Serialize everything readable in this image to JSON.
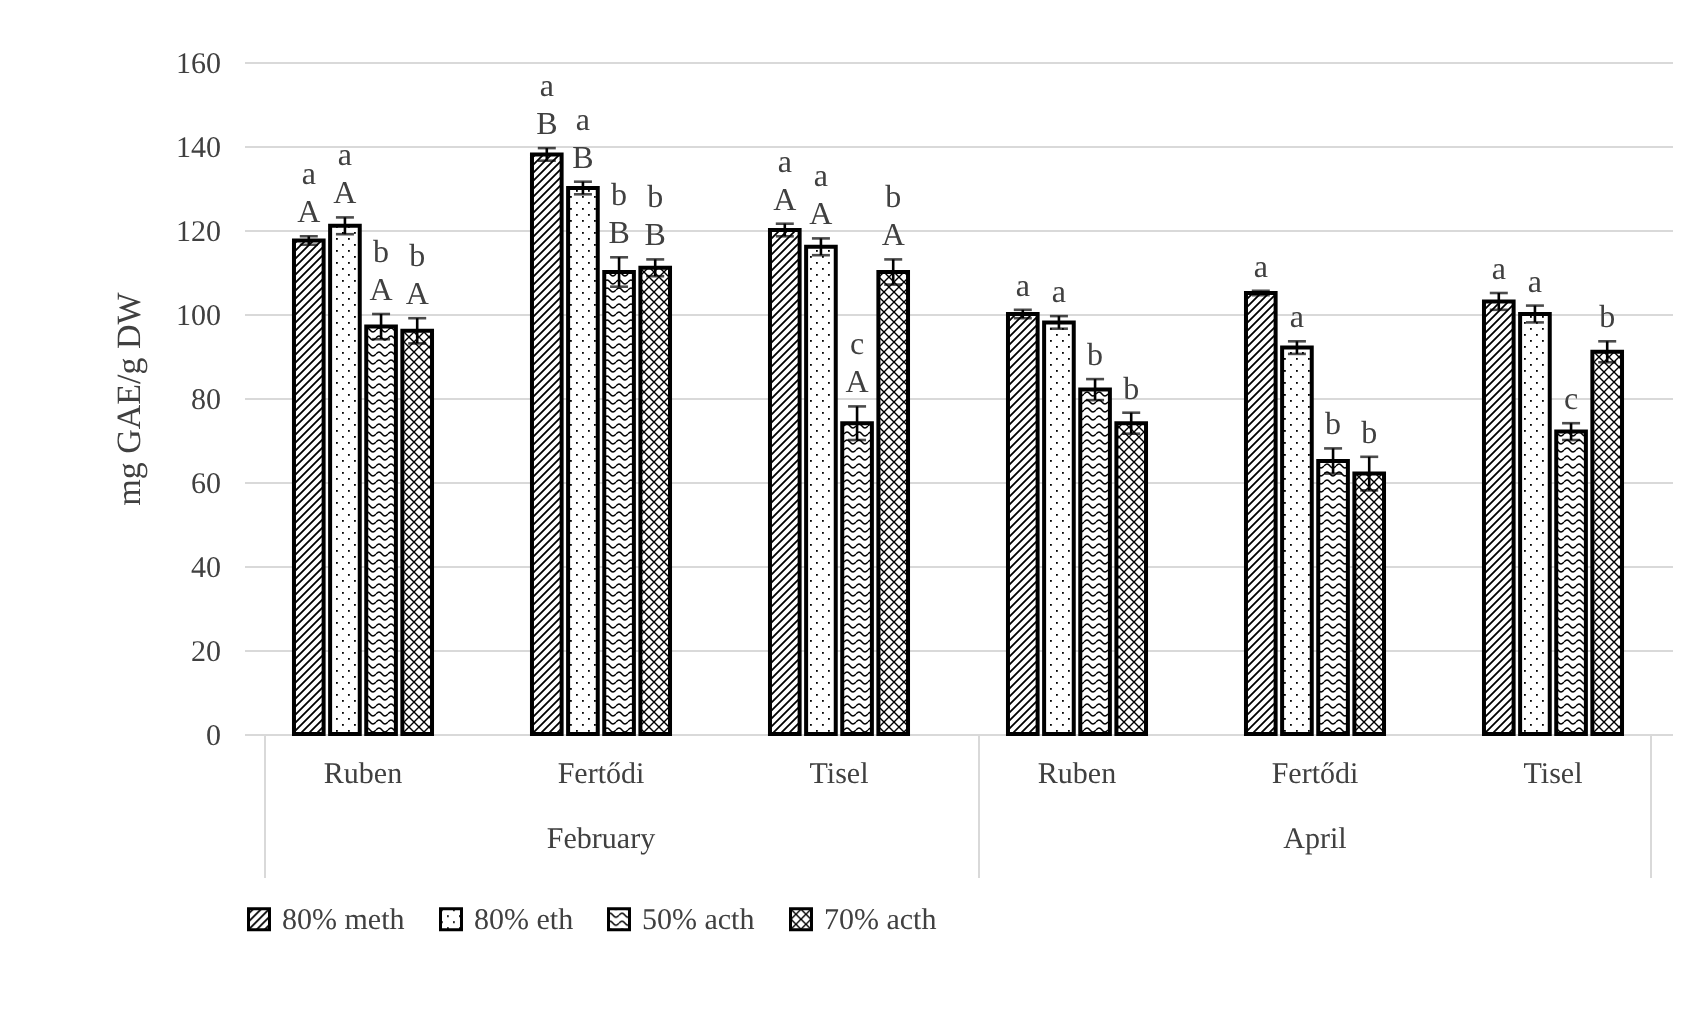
{
  "chart_data": {
    "type": "bar",
    "ylabel": "mg GAE/g DW",
    "categories": [
      "Ruben",
      "Fertődi",
      "Tisel",
      "Ruben",
      "Fertődi",
      "Tisel"
    ],
    "annotations": [
      "February",
      "April"
    ],
    "series": [
      {
        "name": "80% meth",
        "color": "#000000",
        "values": [
          117.5,
          138,
          120,
          100,
          105,
          103
        ],
        "errors": [
          1,
          1.5,
          1.5,
          1,
          0.5,
          2
        ],
        "value_labels": [
          "a\nA",
          "a\nB",
          "a\nA",
          "a",
          "a",
          "a"
        ]
      },
      {
        "name": "80% eth",
        "color": "#000000",
        "values": [
          121,
          130,
          116,
          98,
          92,
          100
        ],
        "errors": [
          2,
          1.5,
          2,
          1.5,
          1.5,
          2
        ],
        "value_labels": [
          "a\nA",
          "a\nB",
          "a\nA",
          "a",
          "a",
          "a"
        ]
      },
      {
        "name": "50% acth",
        "color": "#000000",
        "values": [
          97,
          110,
          74,
          82,
          65,
          72
        ],
        "errors": [
          3,
          3.5,
          4,
          2.5,
          3,
          2
        ],
        "value_labels": [
          "b\nA",
          "b\nB",
          "c\nA",
          "b",
          "b",
          "c"
        ]
      },
      {
        "name": "70% acth",
        "color": "#000000",
        "values": [
          96,
          111,
          110,
          74,
          62,
          91
        ],
        "errors": [
          3,
          2,
          3,
          2.5,
          4,
          2.5
        ],
        "value_labels": [
          "b\nA",
          "b\nB",
          "b\nA",
          "b",
          "b",
          "b"
        ]
      }
    ],
    "ylim": [
      0,
      160
    ],
    "yticks": [
      0,
      20,
      40,
      60,
      80,
      100,
      120,
      140,
      160
    ],
    "grid": "y",
    "legend": "bottom"
  }
}
